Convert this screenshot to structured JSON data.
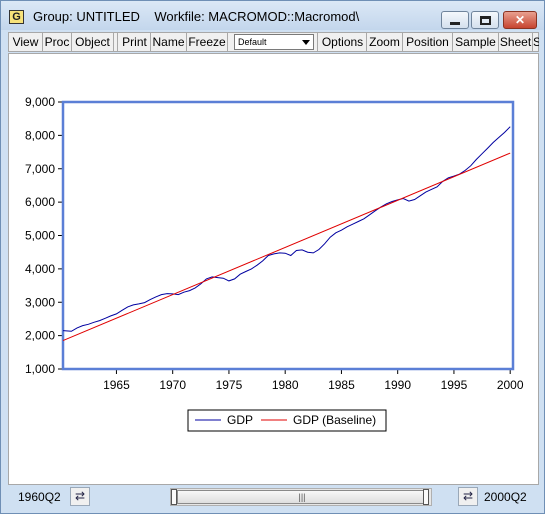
{
  "window": {
    "icon_letter": "G",
    "title": "Group: UNTITLED    Workfile: MACROMOD::Macromod\\",
    "close_label": "✕"
  },
  "toolbar": {
    "buttons": [
      "View",
      "Proc",
      "Object",
      "Print",
      "Name",
      "Freeze",
      "Options",
      "Zoom",
      "Position",
      "Sample",
      "Sheet",
      "S"
    ],
    "dropdown_value": "Default"
  },
  "chart_data": {
    "type": "line",
    "x_ticks": [
      "1965",
      "1970",
      "1975",
      "1980",
      "1985",
      "1990",
      "1995",
      "2000"
    ],
    "y_ticks": [
      "1,000",
      "2,000",
      "3,000",
      "4,000",
      "5,000",
      "6,000",
      "7,000",
      "8,000",
      "9,000"
    ],
    "xlim": [
      1960.25,
      2000.25
    ],
    "ylim": [
      1000,
      9000
    ],
    "grid": false,
    "legend_position": "bottom-center",
    "series": [
      {
        "name": "GDP",
        "color": "#0000a0",
        "points": [
          [
            1960.25,
            2150
          ],
          [
            1961.0,
            2130
          ],
          [
            1961.5,
            2230
          ],
          [
            1962.0,
            2300
          ],
          [
            1962.5,
            2340
          ],
          [
            1963.0,
            2400
          ],
          [
            1963.5,
            2450
          ],
          [
            1964.0,
            2520
          ],
          [
            1964.5,
            2590
          ],
          [
            1965.0,
            2650
          ],
          [
            1965.5,
            2760
          ],
          [
            1966.0,
            2860
          ],
          [
            1966.5,
            2920
          ],
          [
            1967.0,
            2950
          ],
          [
            1967.5,
            2990
          ],
          [
            1968.0,
            3080
          ],
          [
            1968.5,
            3160
          ],
          [
            1969.0,
            3230
          ],
          [
            1969.5,
            3260
          ],
          [
            1970.0,
            3250
          ],
          [
            1970.5,
            3230
          ],
          [
            1971.0,
            3300
          ],
          [
            1971.5,
            3350
          ],
          [
            1972.0,
            3430
          ],
          [
            1972.5,
            3550
          ],
          [
            1973.0,
            3700
          ],
          [
            1973.5,
            3760
          ],
          [
            1974.0,
            3740
          ],
          [
            1974.5,
            3720
          ],
          [
            1975.0,
            3640
          ],
          [
            1975.5,
            3700
          ],
          [
            1976.0,
            3840
          ],
          [
            1976.5,
            3920
          ],
          [
            1977.0,
            4000
          ],
          [
            1977.5,
            4110
          ],
          [
            1978.0,
            4240
          ],
          [
            1978.5,
            4400
          ],
          [
            1979.0,
            4450
          ],
          [
            1979.5,
            4480
          ],
          [
            1980.0,
            4470
          ],
          [
            1980.5,
            4400
          ],
          [
            1981.0,
            4550
          ],
          [
            1981.5,
            4570
          ],
          [
            1982.0,
            4500
          ],
          [
            1982.5,
            4480
          ],
          [
            1983.0,
            4580
          ],
          [
            1983.5,
            4750
          ],
          [
            1984.0,
            4950
          ],
          [
            1984.5,
            5080
          ],
          [
            1985.0,
            5160
          ],
          [
            1985.5,
            5260
          ],
          [
            1986.0,
            5340
          ],
          [
            1986.5,
            5420
          ],
          [
            1987.0,
            5500
          ],
          [
            1987.5,
            5620
          ],
          [
            1988.0,
            5740
          ],
          [
            1988.5,
            5850
          ],
          [
            1989.0,
            5950
          ],
          [
            1989.5,
            6020
          ],
          [
            1990.0,
            6070
          ],
          [
            1990.5,
            6110
          ],
          [
            1991.0,
            6030
          ],
          [
            1991.5,
            6080
          ],
          [
            1992.0,
            6190
          ],
          [
            1992.5,
            6300
          ],
          [
            1993.0,
            6380
          ],
          [
            1993.5,
            6460
          ],
          [
            1994.0,
            6620
          ],
          [
            1994.5,
            6730
          ],
          [
            1995.0,
            6780
          ],
          [
            1995.5,
            6840
          ],
          [
            1996.0,
            6950
          ],
          [
            1996.5,
            7090
          ],
          [
            1997.0,
            7280
          ],
          [
            1997.5,
            7450
          ],
          [
            1998.0,
            7620
          ],
          [
            1998.5,
            7790
          ],
          [
            1999.0,
            7940
          ],
          [
            1999.5,
            8090
          ],
          [
            2000.0,
            8260
          ]
        ]
      },
      {
        "name": "GDP (Baseline)",
        "color": "#e00000",
        "points": [
          [
            1960.25,
            1850
          ],
          [
            2000.0,
            7470
          ]
        ]
      }
    ]
  },
  "status": {
    "start_date": "1960Q2",
    "end_date": "2000Q2",
    "left_arrow": "⇄",
    "right_arrow": "⇄",
    "thumb_grip": "|||"
  }
}
